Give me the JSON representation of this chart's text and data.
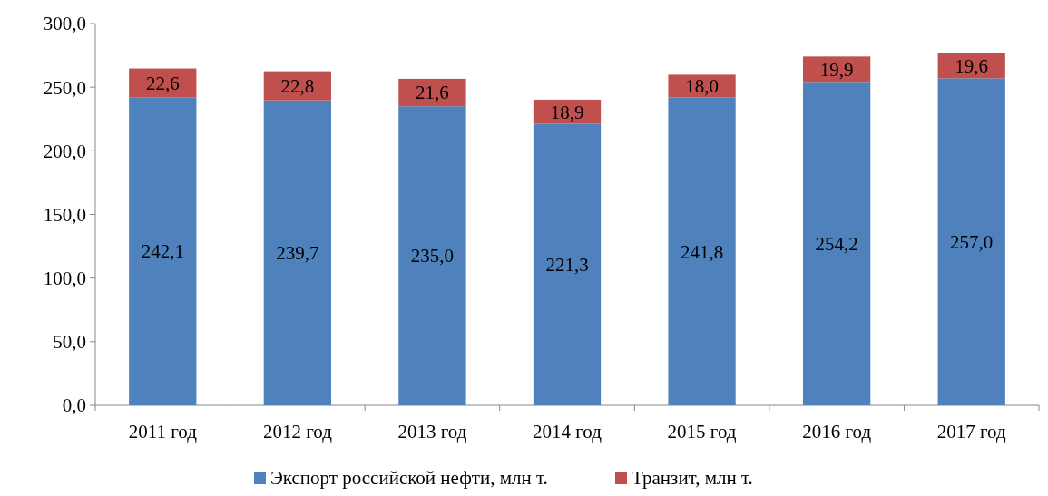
{
  "chart_data": {
    "type": "bar",
    "stacked": true,
    "categories": [
      "2011 год",
      "2012 год",
      "2013 год",
      "2014 год",
      "2015 год",
      "2016 год",
      "2017 год"
    ],
    "series": [
      {
        "name": "Экспорт российской нефти, млн т.",
        "color": "#4f81bd",
        "values": [
          242.1,
          239.7,
          235.0,
          221.3,
          241.8,
          254.2,
          257.0
        ],
        "value_labels": [
          "242,1",
          "239,7",
          "235,0",
          "221,3",
          "241,8",
          "254,2",
          "257,0"
        ]
      },
      {
        "name": "Транзит, млн т.",
        "color": "#c0504d",
        "values": [
          22.6,
          22.8,
          21.6,
          18.9,
          18.0,
          19.9,
          19.6
        ],
        "value_labels": [
          "22,6",
          "22,8",
          "21,6",
          "18,9",
          "18,0",
          "19,9",
          "19,6"
        ]
      }
    ],
    "ylim": [
      0,
      300
    ],
    "yticks": [
      {
        "value": 0,
        "label": "0,0"
      },
      {
        "value": 50,
        "label": "50,0"
      },
      {
        "value": 100,
        "label": "100,0"
      },
      {
        "value": 150,
        "label": "150,0"
      },
      {
        "value": 200,
        "label": "200,0"
      },
      {
        "value": 250,
        "label": "250,0"
      },
      {
        "value": 300,
        "label": "300,0"
      }
    ],
    "grid": false,
    "legend": "bottom"
  }
}
